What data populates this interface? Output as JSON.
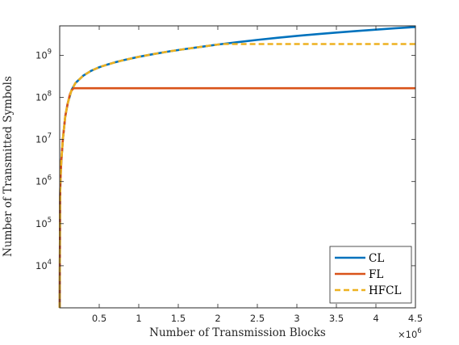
{
  "chart_data": {
    "type": "line",
    "title": "",
    "xlabel": "Number of Transmission Blocks",
    "ylabel": "Number of Transmitted Symbols",
    "x_multiplier": "×10",
    "x_multiplier_exp": "6",
    "xlim": [
      0,
      4500000
    ],
    "ylim": [
      1000,
      5000000000
    ],
    "y_scale": "log",
    "grid": false,
    "legend_position": "bottom-right",
    "x_ticks": [
      500000,
      1000000,
      1500000,
      2000000,
      2500000,
      3000000,
      3500000,
      4000000,
      4500000
    ],
    "x_tick_labels": [
      "0.5",
      "1",
      "1.5",
      "2",
      "2.5",
      "3",
      "3.5",
      "4",
      "4.5"
    ],
    "y_ticks": [
      10000,
      100000,
      1000000,
      10000000,
      100000000,
      1000000000
    ],
    "y_tick_base": "10",
    "y_tick_exps": [
      "4",
      "5",
      "6",
      "7",
      "8",
      "9"
    ],
    "series": [
      {
        "name": "CL",
        "color": "#0072BD",
        "style": "solid",
        "x": [
          0,
          5000,
          10000,
          20000,
          40000,
          70000,
          100000,
          150000,
          200000,
          300000,
          400000,
          500000,
          600000,
          700000,
          800000,
          1000000,
          1200000,
          1400000,
          1600000,
          1800000,
          2000000,
          2250000,
          2500000,
          2750000,
          3000000,
          3250000,
          3500000,
          3750000,
          4000000,
          4250000,
          4500000
        ],
        "y": [
          1000,
          400000,
          1100000,
          3000000,
          10000000,
          35000000,
          70000000,
          150000000,
          220000000,
          330000000,
          430000000,
          520000000,
          600000000,
          680000000,
          760000000,
          920000000,
          1080000000,
          1250000000,
          1420000000,
          1600000000,
          1800000000,
          2050000000,
          2320000000,
          2600000000,
          2880000000,
          3170000000,
          3460000000,
          3760000000,
          4070000000,
          4390000000,
          4700000000
        ]
      },
      {
        "name": "FL",
        "color": "#D95319",
        "style": "solid",
        "x": [
          0,
          5000,
          10000,
          20000,
          40000,
          70000,
          100000,
          130000,
          150000,
          175000,
          1000000,
          2000000,
          3000000,
          4000000,
          4500000
        ],
        "y": [
          1000,
          400000,
          1100000,
          3000000,
          10000000,
          35000000,
          70000000,
          120000000,
          145000000,
          165000000,
          165000000,
          165000000,
          165000000,
          165000000,
          165000000
        ]
      },
      {
        "name": "HFCL",
        "color": "#EDB120",
        "style": "dashed",
        "x": [
          0,
          5000,
          10000,
          20000,
          40000,
          70000,
          100000,
          150000,
          200000,
          300000,
          400000,
          500000,
          600000,
          700000,
          800000,
          1000000,
          1200000,
          1400000,
          1600000,
          1800000,
          2000000,
          2050000,
          2500000,
          3000000,
          3500000,
          4000000,
          4500000
        ],
        "y": [
          1000,
          400000,
          1100000,
          3000000,
          10000000,
          35000000,
          70000000,
          150000000,
          220000000,
          330000000,
          430000000,
          520000000,
          600000000,
          680000000,
          760000000,
          920000000,
          1080000000,
          1250000000,
          1420000000,
          1600000000,
          1800000000,
          1850000000,
          1850000000,
          1850000000,
          1850000000,
          1850000000,
          1850000000
        ]
      }
    ]
  }
}
